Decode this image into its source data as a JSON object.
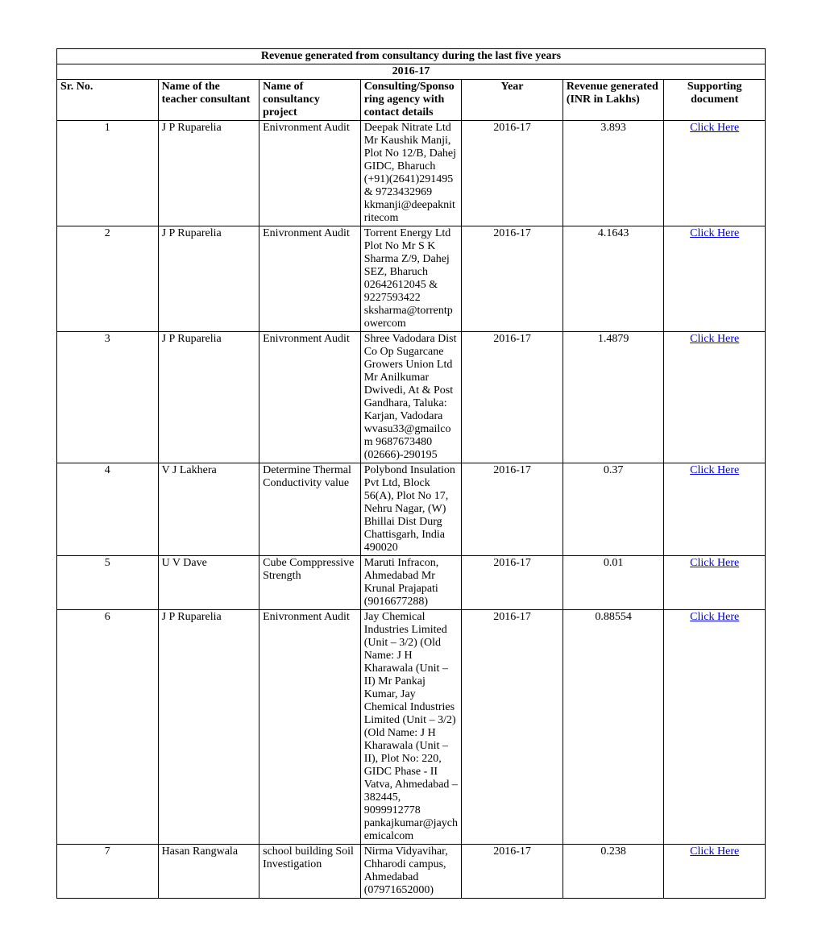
{
  "table": {
    "title": "Revenue generated from consultancy during the last five years",
    "subtitle": "2016-17",
    "columns": {
      "sr": "Sr. No.",
      "teacher": "Name of the teacher consultant",
      "project": "Name of consultancy project",
      "agency": "Consulting/Sponsoring agency with contact details",
      "year": "Year",
      "revenue": "Revenue generated (INR in Lakhs)",
      "doc": "Supporting document"
    },
    "link_label": "Click Here",
    "rows": [
      {
        "sr": "1",
        "teacher": "J P Ruparelia",
        "project": "Enivronment Audit",
        "agency": "Deepak Nitrate Ltd Mr Kaushik Manji, Plot No 12/B, Dahej GIDC, Bharuch (+91)(2641)291495 & 9723432969 kkmanji@deepaknitritecom",
        "year": "2016-17",
        "revenue": "3.893"
      },
      {
        "sr": "2",
        "teacher": "J P Ruparelia",
        "project": "Enivronment Audit",
        "agency": "Torrent Energy Ltd Plot No Mr S K Sharma Z/9, Dahej SEZ, Bharuch 02642612045 & 9227593422 sksharma@torrentpowercom",
        "year": "2016-17",
        "revenue": "4.1643"
      },
      {
        "sr": "3",
        "teacher": "J P Ruparelia",
        "project": "Enivronment Audit",
        "agency": "Shree Vadodara Dist Co Op Sugarcane Growers Union Ltd Mr Anilkumar Dwivedi, At & Post Gandhara, Taluka: Karjan, Vadodara wvasu33@gmailcom 9687673480 (02666)-290195",
        "year": "2016-17",
        "revenue": "1.4879"
      },
      {
        "sr": "4",
        "teacher": "V J Lakhera",
        "project": "Determine Thermal Conductivity value",
        "agency": "Polybond Insulation Pvt Ltd, Block 56(A), Plot No 17, Nehru Nagar, (W) Bhillai Dist Durg Chattisgarh, India 490020",
        "year": "2016-17",
        "revenue": "0.37"
      },
      {
        "sr": "5",
        "teacher": "U V Dave",
        "project": "Cube Comppressive Strength",
        "agency": "Maruti Infracon, Ahmedabad Mr Krunal Prajapati (9016677288)",
        "year": "2016-17",
        "revenue": "0.01"
      },
      {
        "sr": "6",
        "teacher": "J P Ruparelia",
        "project": "Enivronment Audit",
        "agency": "Jay Chemical Industries Limited (Unit – 3/2) (Old Name: J H Kharawala (Unit – II) Mr Pankaj Kumar, Jay Chemical Industries Limited (Unit – 3/2)\n(Old Name: J H Kharawala (Unit – II), Plot No: 220, GIDC Phase - II Vatva, Ahmedabad – 382445, 9099912778 pankajkumar@jaychemicalcom",
        "year": "2016-17",
        "revenue": "0.88554"
      },
      {
        "sr": "7",
        "teacher": "Hasan Rangwala",
        "project": "school building Soil Investigation",
        "agency": "Nirma Vidyavihar, Chharodi campus, Ahmedabad (07971652000)",
        "year": "2016-17",
        "revenue": "0.238"
      }
    ]
  }
}
